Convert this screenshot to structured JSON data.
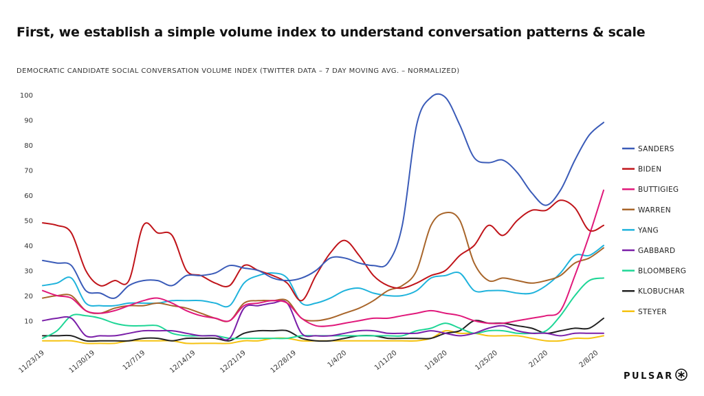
{
  "slide": {
    "title": "First, we establish a simple volume index to understand conversation patterns & scale",
    "subtitle": "DEMOCRATIC CANDIDATE SOCIAL CONVERSATION VOLUME INDEX (TWITTER DATA – 7 DAY MOVING AVG. – NORMALIZED)",
    "brand": "PULSAR",
    "brand_icon": "pulsar-star-icon"
  },
  "chart_data": {
    "type": "line",
    "title": "DEMOCRATIC CANDIDATE SOCIAL CONVERSATION VOLUME INDEX (TWITTER DATA – 7 DAY MOVING AVG. – NORMALIZED)",
    "xlabel": "",
    "ylabel": "",
    "ylim": [
      0,
      100
    ],
    "yticks": [
      10,
      20,
      30,
      40,
      50,
      60,
      70,
      80,
      90,
      100
    ],
    "xticks": [
      "11/23/19",
      "11/30/19",
      "12/7/19",
      "12/14/19",
      "12/21/19",
      "12/28/19",
      "1/4/20",
      "1/11/20",
      "1/18/20",
      "1/25/20",
      "2/1/20",
      "2/8/20"
    ],
    "grid": false,
    "legend_position": "right",
    "x": [
      "11/23/19",
      "11/25/19",
      "11/27/19",
      "11/29/19",
      "12/1/19",
      "12/3/19",
      "12/5/19",
      "12/7/19",
      "12/9/19",
      "12/11/19",
      "12/13/19",
      "12/15/19",
      "12/17/19",
      "12/19/19",
      "12/21/19",
      "12/23/19",
      "12/25/19",
      "12/27/19",
      "12/29/19",
      "12/31/19",
      "1/2/20",
      "1/4/20",
      "1/6/20",
      "1/8/20",
      "1/10/20",
      "1/12/20",
      "1/14/20",
      "1/16/20",
      "1/18/20",
      "1/20/20",
      "1/22/20",
      "1/24/20",
      "1/26/20",
      "1/28/20",
      "1/30/20",
      "2/1/20",
      "2/3/20",
      "2/5/20",
      "2/7/20",
      "2/9/20"
    ],
    "series": [
      {
        "name": "SANDERS",
        "color": "#3a5bb8",
        "values": [
          34,
          33,
          32,
          22,
          21,
          19,
          24,
          26,
          26,
          24,
          28,
          28,
          29,
          32,
          31,
          30,
          27,
          26,
          27,
          30,
          35,
          35,
          33,
          32,
          33,
          48,
          88,
          99,
          99,
          88,
          75,
          73,
          74,
          69,
          61,
          56,
          62,
          74,
          84,
          89
        ]
      },
      {
        "name": "BIDEN",
        "color": "#c0141a",
        "values": [
          49,
          48,
          45,
          30,
          24,
          26,
          26,
          48,
          45,
          44,
          30,
          28,
          25,
          24,
          32,
          30,
          28,
          25,
          18,
          28,
          37,
          42,
          36,
          28,
          24,
          23,
          25,
          28,
          30,
          36,
          40,
          48,
          44,
          50,
          54,
          54,
          58,
          55,
          46,
          48
        ]
      },
      {
        "name": "BUTTIGIEG",
        "color": "#e0187a",
        "values": [
          22,
          20,
          19,
          14,
          13,
          14,
          16,
          18,
          19,
          17,
          14,
          12,
          11,
          10,
          16,
          17,
          18,
          17,
          11,
          8,
          8,
          9,
          10,
          11,
          11,
          12,
          13,
          14,
          13,
          12,
          10,
          9,
          9,
          10,
          11,
          12,
          14,
          28,
          44,
          62
        ]
      },
      {
        "name": "WARREN",
        "color": "#a8652a",
        "values": [
          19,
          20,
          20,
          14,
          13,
          15,
          16,
          16,
          17,
          16,
          15,
          13,
          11,
          10,
          17,
          18,
          18,
          18,
          11,
          10,
          11,
          13,
          15,
          18,
          22,
          24,
          30,
          48,
          53,
          50,
          33,
          26,
          27,
          26,
          25,
          26,
          28,
          33,
          35,
          39
        ]
      },
      {
        "name": "YANG",
        "color": "#1fb3dc",
        "values": [
          24,
          25,
          27,
          17,
          16,
          16,
          17,
          17,
          17,
          18,
          18,
          18,
          17,
          16,
          25,
          28,
          29,
          27,
          17,
          17,
          19,
          22,
          23,
          21,
          20,
          20,
          22,
          27,
          28,
          29,
          22,
          22,
          22,
          21,
          21,
          24,
          29,
          36,
          36,
          40
        ]
      },
      {
        "name": "GABBARD",
        "color": "#7a1fa8",
        "values": [
          10,
          11,
          11,
          4,
          4,
          4,
          5,
          6,
          6,
          6,
          5,
          4,
          4,
          3,
          15,
          16,
          17,
          17,
          5,
          4,
          4,
          5,
          6,
          6,
          5,
          5,
          5,
          6,
          5,
          4,
          5,
          7,
          8,
          6,
          5,
          5,
          4,
          5,
          5,
          5
        ]
      },
      {
        "name": "BLOOMBERG",
        "color": "#1ed696",
        "values": [
          3,
          6,
          12,
          12,
          11,
          9,
          8,
          8,
          8,
          5,
          4,
          4,
          4,
          3,
          3,
          3,
          3,
          3,
          4,
          4,
          4,
          4,
          4,
          4,
          4,
          4,
          6,
          7,
          9,
          7,
          5,
          6,
          6,
          5,
          5,
          6,
          12,
          20,
          26,
          27
        ]
      },
      {
        "name": "KLOBUCHAR",
        "color": "#222222",
        "values": [
          4,
          4,
          4,
          2,
          2,
          2,
          2,
          3,
          3,
          2,
          3,
          3,
          3,
          2,
          5,
          6,
          6,
          6,
          3,
          2,
          2,
          3,
          4,
          4,
          3,
          3,
          3,
          3,
          5,
          6,
          10,
          9,
          9,
          8,
          7,
          5,
          6,
          7,
          7,
          11
        ]
      },
      {
        "name": "STEYER",
        "color": "#f5c211",
        "values": [
          2,
          2,
          2,
          1,
          1,
          1,
          2,
          2,
          2,
          2,
          1,
          1,
          1,
          1,
          2,
          2,
          3,
          3,
          2,
          2,
          2,
          2,
          2,
          2,
          2,
          2,
          2,
          3,
          6,
          5,
          5,
          4,
          4,
          4,
          3,
          2,
          2,
          3,
          3,
          4
        ]
      }
    ]
  }
}
